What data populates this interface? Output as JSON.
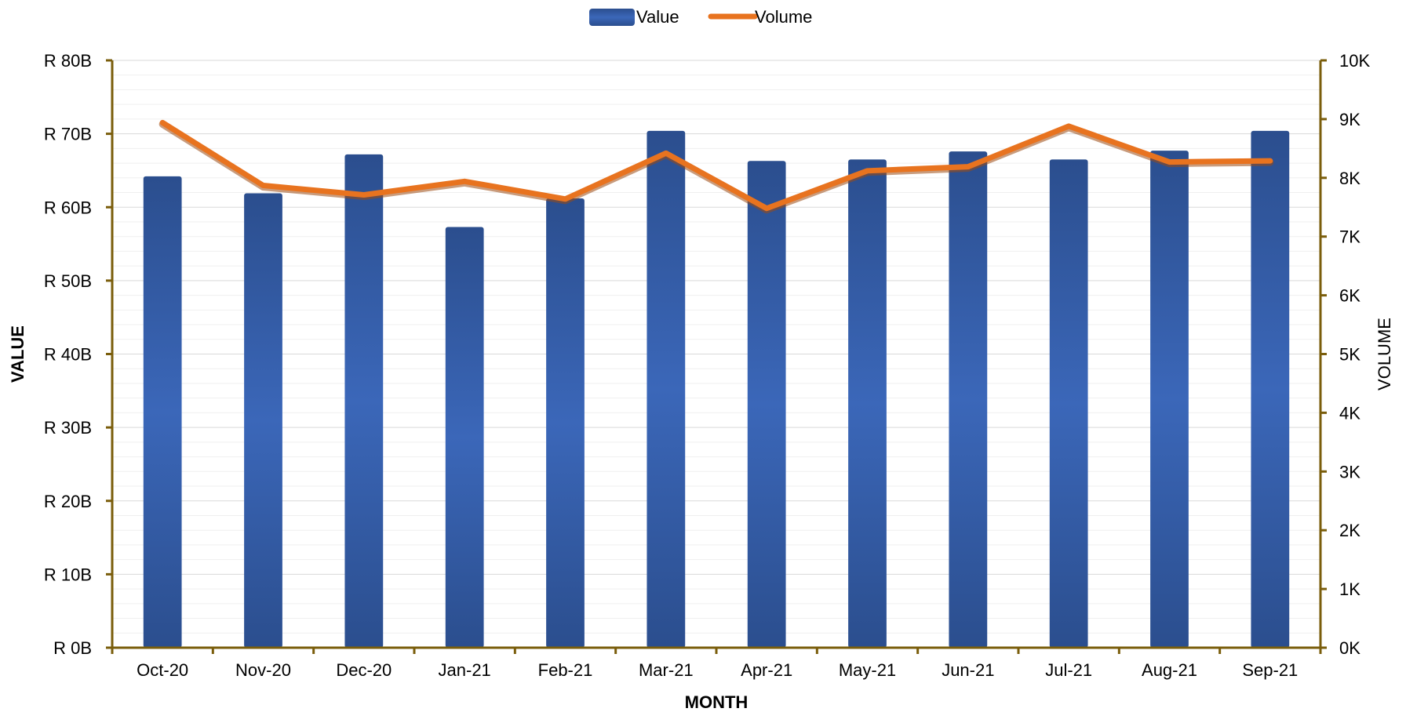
{
  "chart_data": {
    "type": "bar",
    "categories": [
      "Oct-20",
      "Nov-20",
      "Dec-20",
      "Jan-21",
      "Feb-21",
      "Mar-21",
      "Apr-21",
      "May-21",
      "Jun-21",
      "Jul-21",
      "Aug-21",
      "Sep-21"
    ],
    "series": [
      {
        "name": "Value",
        "type": "bar",
        "axis": "left",
        "color": "#3a63b4",
        "values": [
          64.2,
          61.9,
          67.2,
          57.3,
          61.2,
          70.4,
          66.3,
          66.5,
          67.6,
          66.5,
          67.7,
          70.4
        ]
      },
      {
        "name": "Volume",
        "type": "line",
        "axis": "right",
        "color": "#e8731f",
        "values": [
          8940,
          7870,
          7710,
          7940,
          7640,
          8420,
          7480,
          8120,
          8190,
          8880,
          8270,
          8290
        ]
      }
    ],
    "xlabel": "MONTH",
    "ylabel": "VALUE",
    "y2label": "VOLUME",
    "ylim": [
      0,
      80
    ],
    "y2lim": [
      0,
      10000
    ],
    "y_ticks": [
      "R 0B",
      "R 10B",
      "R 20B",
      "R 30B",
      "R 40B",
      "R 50B",
      "R 60B",
      "R 70B",
      "R 80B"
    ],
    "y2_ticks": [
      "0K",
      "1K",
      "2K",
      "3K",
      "4K",
      "5K",
      "6K",
      "7K",
      "8K",
      "9K",
      "10K"
    ],
    "grid": true,
    "legend_position": "top",
    "axis_color": "#7a5d0b"
  }
}
